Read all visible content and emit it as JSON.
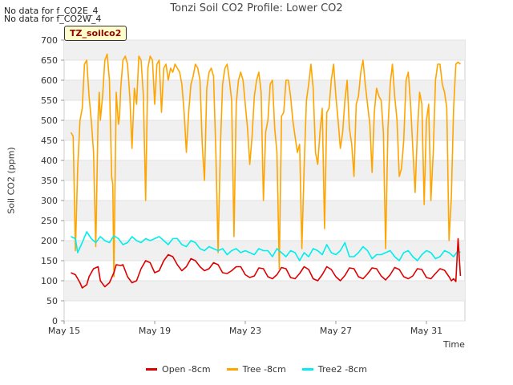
{
  "notices": [
    "No data for f_CO2E_4",
    "No data for f_CO2W_4"
  ],
  "badge": "TZ_soilco2",
  "chart_data": {
    "type": "line",
    "title": "Tonzi Soil CO2 Profile: Lower CO2",
    "xlabel": "Time",
    "ylabel": "Soil CO2 (ppm)",
    "xlim": [
      15,
      32.7
    ],
    "ylim": [
      0,
      700
    ],
    "x_ticks": [
      15,
      19,
      23,
      27,
      31
    ],
    "x_tick_labels": [
      "May 15",
      "May 19",
      "May 23",
      "May 27",
      "May 31"
    ],
    "y_ticks": [
      0,
      50,
      100,
      150,
      200,
      250,
      300,
      350,
      400,
      450,
      500,
      550,
      600,
      650,
      700
    ],
    "y_tick_labels": [
      "0",
      "50",
      "100",
      "150",
      "200",
      "250",
      "300",
      "350",
      "400",
      "450",
      "500",
      "550",
      "600",
      "650",
      "700"
    ],
    "grid": "horizontal bands",
    "legend_position": "bottom",
    "series": [
      {
        "name": "Open -8cm",
        "color": "#dd0000",
        "x": [
          15.3,
          15.5,
          15.7,
          15.8,
          16.0,
          16.1,
          16.3,
          16.5,
          16.6,
          16.8,
          17.0,
          17.2,
          17.3,
          17.5,
          17.6,
          17.8,
          18.0,
          18.2,
          18.4,
          18.6,
          18.8,
          19.0,
          19.2,
          19.4,
          19.6,
          19.8,
          20.0,
          20.2,
          20.4,
          20.6,
          20.8,
          21.0,
          21.2,
          21.4,
          21.6,
          21.8,
          22.0,
          22.2,
          22.4,
          22.6,
          22.8,
          23.0,
          23.2,
          23.4,
          23.6,
          23.8,
          24.0,
          24.2,
          24.4,
          24.6,
          24.8,
          25.0,
          25.2,
          25.4,
          25.6,
          25.8,
          26.0,
          26.2,
          26.4,
          26.6,
          26.8,
          27.0,
          27.2,
          27.4,
          27.6,
          27.8,
          28.0,
          28.2,
          28.4,
          28.6,
          28.8,
          29.0,
          29.2,
          29.4,
          29.6,
          29.8,
          30.0,
          30.2,
          30.4,
          30.6,
          30.8,
          31.0,
          31.2,
          31.4,
          31.6,
          31.8,
          32.0,
          32.1,
          32.2,
          32.3,
          32.4,
          32.5
        ],
        "values": [
          120,
          115,
          95,
          82,
          90,
          110,
          130,
          135,
          100,
          85,
          95,
          120,
          140,
          138,
          140,
          110,
          95,
          100,
          130,
          150,
          145,
          120,
          125,
          150,
          165,
          160,
          140,
          125,
          135,
          155,
          150,
          135,
          125,
          130,
          145,
          140,
          120,
          118,
          125,
          135,
          135,
          115,
          108,
          112,
          132,
          130,
          110,
          105,
          115,
          133,
          130,
          108,
          105,
          118,
          135,
          128,
          105,
          100,
          115,
          135,
          128,
          110,
          100,
          113,
          132,
          130,
          110,
          105,
          117,
          132,
          130,
          112,
          102,
          115,
          133,
          128,
          110,
          105,
          112,
          130,
          128,
          108,
          105,
          118,
          130,
          126,
          110,
          100,
          105,
          98,
          205,
          112
        ]
      },
      {
        "name": "Tree -8cm",
        "color": "#ffa500",
        "x": [
          15.3,
          15.4,
          15.5,
          15.6,
          15.7,
          15.8,
          15.9,
          16.0,
          16.1,
          16.2,
          16.3,
          16.4,
          16.5,
          16.55,
          16.6,
          16.7,
          16.8,
          16.9,
          17.0,
          17.1,
          17.15,
          17.2,
          17.3,
          17.4,
          17.45,
          17.5,
          17.6,
          17.7,
          17.8,
          17.9,
          18.0,
          18.1,
          18.2,
          18.3,
          18.4,
          18.5,
          18.6,
          18.7,
          18.8,
          18.9,
          19.0,
          19.1,
          19.2,
          19.3,
          19.4,
          19.5,
          19.6,
          19.7,
          19.8,
          19.9,
          20.0,
          20.1,
          20.2,
          20.3,
          20.4,
          20.5,
          20.6,
          20.7,
          20.8,
          20.9,
          21.0,
          21.1,
          21.2,
          21.3,
          21.4,
          21.5,
          21.6,
          21.7,
          21.8,
          21.9,
          22.0,
          22.1,
          22.2,
          22.3,
          22.4,
          22.5,
          22.6,
          22.7,
          22.8,
          22.9,
          23.0,
          23.1,
          23.2,
          23.3,
          23.4,
          23.5,
          23.6,
          23.7,
          23.8,
          23.9,
          24.0,
          24.1,
          24.2,
          24.3,
          24.4,
          24.5,
          24.6,
          24.7,
          24.8,
          24.9,
          25.0,
          25.1,
          25.2,
          25.3,
          25.4,
          25.5,
          25.6,
          25.7,
          25.8,
          25.9,
          26.0,
          26.1,
          26.2,
          26.3,
          26.4,
          26.5,
          26.6,
          26.7,
          26.8,
          26.9,
          27.0,
          27.1,
          27.2,
          27.3,
          27.4,
          27.5,
          27.6,
          27.7,
          27.8,
          27.9,
          28.0,
          28.1,
          28.2,
          28.3,
          28.4,
          28.5,
          28.6,
          28.7,
          28.8,
          28.9,
          29.0,
          29.1,
          29.2,
          29.3,
          29.4,
          29.5,
          29.6,
          29.7,
          29.8,
          29.9,
          30.0,
          30.1,
          30.2,
          30.3,
          30.4,
          30.5,
          30.6,
          30.7,
          30.8,
          30.9,
          31.0,
          31.1,
          31.2,
          31.3,
          31.4,
          31.5,
          31.6,
          31.7,
          31.8,
          31.9,
          32.0,
          32.1,
          32.2,
          32.3,
          32.4,
          32.5
        ],
        "values": [
          470,
          460,
          175,
          380,
          500,
          530,
          640,
          650,
          560,
          500,
          420,
          185,
          510,
          570,
          500,
          560,
          650,
          665,
          600,
          360,
          340,
          110,
          570,
          490,
          510,
          580,
          650,
          660,
          640,
          560,
          430,
          580,
          540,
          660,
          650,
          560,
          300,
          630,
          660,
          650,
          540,
          640,
          650,
          520,
          630,
          640,
          600,
          630,
          620,
          640,
          630,
          620,
          590,
          520,
          420,
          520,
          590,
          610,
          640,
          630,
          600,
          440,
          350,
          580,
          620,
          630,
          610,
          420,
          170,
          430,
          590,
          630,
          640,
          600,
          550,
          210,
          540,
          600,
          620,
          600,
          540,
          480,
          390,
          460,
          560,
          600,
          620,
          570,
          300,
          470,
          500,
          590,
          600,
          480,
          420,
          130,
          510,
          520,
          600,
          600,
          560,
          500,
          460,
          420,
          440,
          180,
          380,
          550,
          590,
          640,
          580,
          420,
          390,
          470,
          530,
          230,
          520,
          530,
          600,
          640,
          560,
          500,
          430,
          470,
          550,
          600,
          480,
          440,
          360,
          540,
          560,
          620,
          650,
          590,
          540,
          490,
          370,
          520,
          580,
          560,
          550,
          470,
          180,
          480,
          590,
          640,
          560,
          500,
          360,
          380,
          450,
          600,
          620,
          540,
          430,
          320,
          470,
          570,
          540,
          290,
          500,
          540,
          300,
          420,
          600,
          640,
          640,
          590,
          570,
          530,
          200,
          310,
          530,
          640,
          645,
          640
        ]
      },
      {
        "name": "Tree2 -8cm",
        "color": "#00eeee",
        "x": [
          15.3,
          15.5,
          15.6,
          15.8,
          16.0,
          16.2,
          16.4,
          16.6,
          16.8,
          17.0,
          17.2,
          17.4,
          17.6,
          17.8,
          18.0,
          18.2,
          18.4,
          18.6,
          18.8,
          19.0,
          19.2,
          19.4,
          19.6,
          19.8,
          20.0,
          20.2,
          20.4,
          20.6,
          20.8,
          21.0,
          21.2,
          21.4,
          21.6,
          21.8,
          22.0,
          22.2,
          22.4,
          22.6,
          22.8,
          23.0,
          23.2,
          23.4,
          23.6,
          23.8,
          24.0,
          24.2,
          24.4,
          24.6,
          24.8,
          25.0,
          25.2,
          25.4,
          25.6,
          25.8,
          26.0,
          26.2,
          26.4,
          26.6,
          26.8,
          27.0,
          27.2,
          27.4,
          27.6,
          27.8,
          28.0,
          28.2,
          28.4,
          28.6,
          28.8,
          29.0,
          29.2,
          29.4,
          29.6,
          29.8,
          30.0,
          30.2,
          30.4,
          30.6,
          30.8,
          31.0,
          31.2,
          31.4,
          31.6,
          31.8,
          32.0,
          32.2,
          32.4,
          32.5
        ],
        "values": [
          210,
          205,
          170,
          195,
          222,
          205,
          195,
          210,
          200,
          195,
          212,
          205,
          190,
          195,
          210,
          200,
          195,
          205,
          200,
          205,
          210,
          200,
          190,
          205,
          205,
          190,
          185,
          200,
          195,
          180,
          175,
          185,
          180,
          175,
          180,
          165,
          175,
          180,
          170,
          175,
          170,
          165,
          180,
          175,
          175,
          160,
          180,
          170,
          160,
          175,
          170,
          150,
          170,
          160,
          180,
          175,
          165,
          190,
          170,
          165,
          175,
          195,
          160,
          160,
          170,
          185,
          175,
          155,
          165,
          165,
          170,
          175,
          160,
          150,
          170,
          175,
          160,
          150,
          165,
          175,
          170,
          155,
          160,
          175,
          170,
          160,
          175,
          170
        ]
      }
    ]
  }
}
